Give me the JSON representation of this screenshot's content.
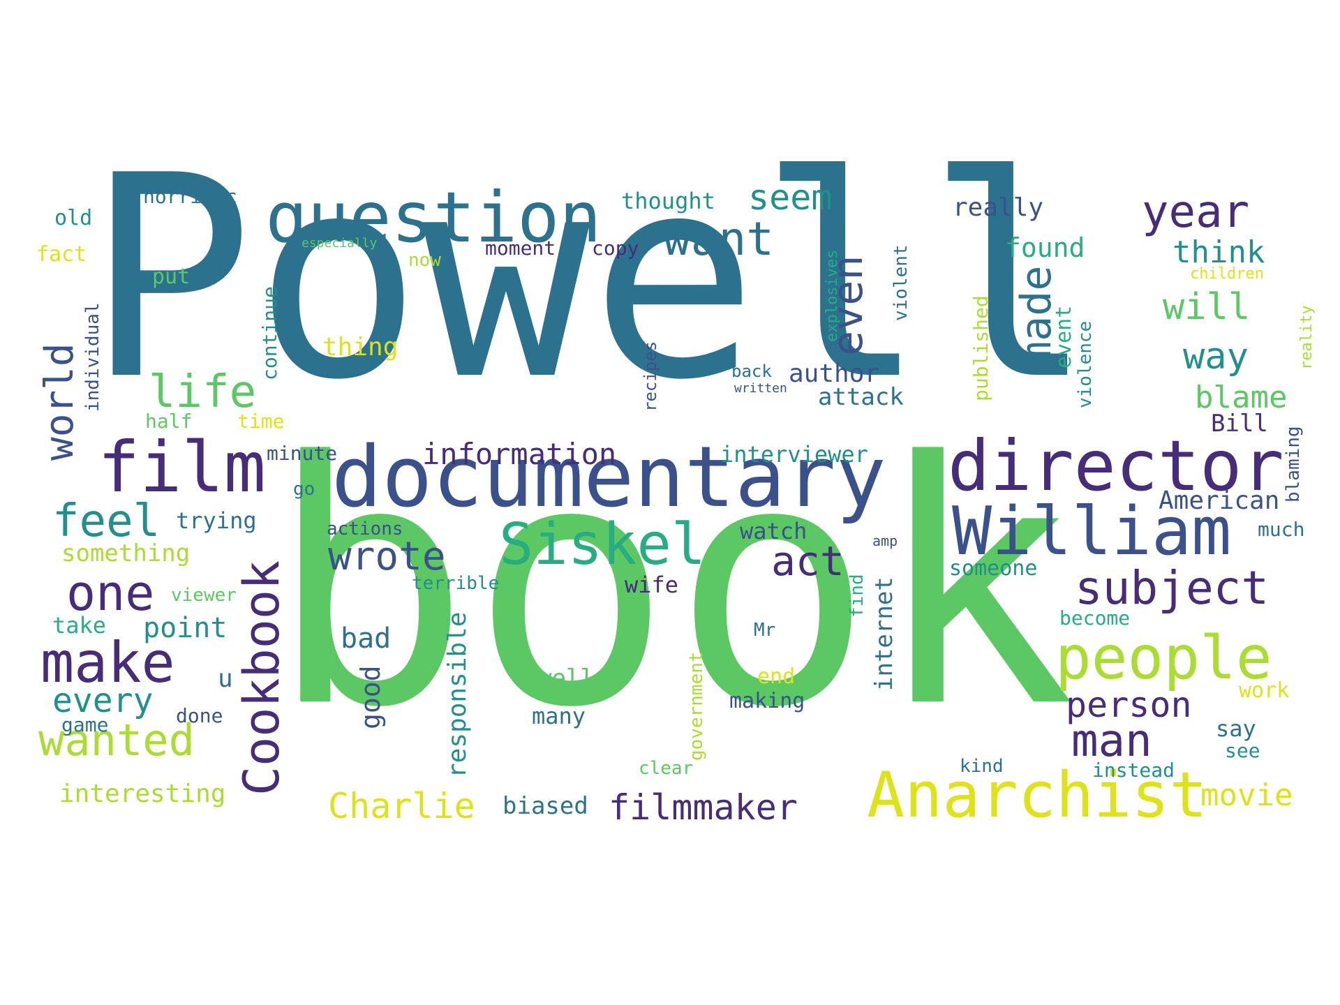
{
  "palette": {
    "dark_purple": "#472c7a",
    "indigo": "#3b518b",
    "blue": "#2c718e",
    "teal": "#21908d",
    "green_teal": "#27ad81",
    "green": "#5cc863",
    "light_green": "#aadc32",
    "yellow": "#dde318"
  },
  "words": [
    {
      "t": "Powell",
      "c": "#2c718e"
    },
    {
      "t": "book",
      "c": "#5cc863"
    },
    {
      "t": "documentary",
      "c": "#3b518b"
    },
    {
      "t": "question",
      "c": "#2c718e"
    },
    {
      "t": "director",
      "c": "#472c7a"
    },
    {
      "t": "William",
      "c": "#3b518b"
    },
    {
      "t": "film",
      "c": "#472c7a"
    },
    {
      "t": "Anarchist",
      "c": "#dde318"
    },
    {
      "t": "Cookbook",
      "c": "#472c7a"
    },
    {
      "t": "people",
      "c": "#aadc32"
    },
    {
      "t": "Siskel",
      "c": "#27ad81"
    },
    {
      "t": "make",
      "c": "#472c7a"
    },
    {
      "t": "world",
      "c": "#3b518b"
    },
    {
      "t": "want",
      "c": "#2c718e"
    },
    {
      "t": "subject",
      "c": "#472c7a"
    },
    {
      "t": "year",
      "c": "#472c7a"
    },
    {
      "t": "made",
      "c": "#2c718e"
    },
    {
      "t": "even",
      "c": "#3b518b"
    },
    {
      "t": "one",
      "c": "#472c7a"
    },
    {
      "t": "man",
      "c": "#472c7a"
    },
    {
      "t": "life",
      "c": "#5cc863"
    },
    {
      "t": "feel",
      "c": "#21908d"
    },
    {
      "t": "wrote",
      "c": "#3b518b"
    },
    {
      "t": "act",
      "c": "#472c7a"
    },
    {
      "t": "wanted",
      "c": "#aadc32"
    },
    {
      "t": "Charlie",
      "c": "#dde318"
    },
    {
      "t": "filmmaker",
      "c": "#472c7a"
    },
    {
      "t": "information",
      "c": "#472c7a"
    },
    {
      "t": "person",
      "c": "#472c7a"
    },
    {
      "t": "every",
      "c": "#21908d"
    },
    {
      "t": "seem",
      "c": "#21908d"
    },
    {
      "t": "will",
      "c": "#5cc863"
    },
    {
      "t": "way",
      "c": "#21908d"
    },
    {
      "t": "think",
      "c": "#21908d"
    },
    {
      "t": "blame",
      "c": "#5cc863"
    },
    {
      "t": "really",
      "c": "#3b518b"
    },
    {
      "t": "found",
      "c": "#27ad81"
    },
    {
      "t": "author",
      "c": "#3b518b"
    },
    {
      "t": "attack",
      "c": "#2c718e"
    },
    {
      "t": "thought",
      "c": "#21908d"
    },
    {
      "t": "point",
      "c": "#21908d"
    },
    {
      "t": "bad",
      "c": "#2c718e"
    },
    {
      "t": "good",
      "c": "#3b518b"
    },
    {
      "t": "responsible",
      "c": "#21908d"
    },
    {
      "t": "movie",
      "c": "#dde318"
    },
    {
      "t": "biased",
      "c": "#2c718e"
    },
    {
      "t": "interesting",
      "c": "#aadc32"
    },
    {
      "t": "something",
      "c": "#aadc32"
    },
    {
      "t": "American",
      "c": "#3b518b"
    },
    {
      "t": "interviewer",
      "c": "#21908d"
    },
    {
      "t": "trying",
      "c": "#2c718e"
    },
    {
      "t": "horrific",
      "c": "#2c718e"
    },
    {
      "t": "old",
      "c": "#21908d"
    },
    {
      "t": "fact",
      "c": "#dde318"
    },
    {
      "t": "individual",
      "c": "#3b518b"
    },
    {
      "t": "half",
      "c": "#5cc863"
    },
    {
      "t": "time",
      "c": "#dde318"
    },
    {
      "t": "moment",
      "c": "#472c7a"
    },
    {
      "t": "copy",
      "c": "#472c7a"
    },
    {
      "t": "continue",
      "c": "#21908d"
    },
    {
      "t": "thing",
      "c": "#dde318"
    },
    {
      "t": "put",
      "c": "#5cc863"
    },
    {
      "t": "now",
      "c": "#aadc32"
    },
    {
      "t": "especially",
      "c": "#5cc863"
    },
    {
      "t": "minute",
      "c": "#3b518b"
    },
    {
      "t": "go",
      "c": "#2c718e"
    },
    {
      "t": "take",
      "c": "#27ad81"
    },
    {
      "t": "viewer",
      "c": "#5cc863"
    },
    {
      "t": "game",
      "c": "#2c718e"
    },
    {
      "t": "done",
      "c": "#3b518b"
    },
    {
      "t": "u",
      "c": "#2c718e"
    },
    {
      "t": "actions",
      "c": "#3b518b"
    },
    {
      "t": "watch",
      "c": "#3b518b"
    },
    {
      "t": "wife",
      "c": "#472c7a"
    },
    {
      "t": "terrible",
      "c": "#21908d"
    },
    {
      "t": "well",
      "c": "#5cc863"
    },
    {
      "t": "many",
      "c": "#2c718e"
    },
    {
      "t": "making",
      "c": "#3b518b"
    },
    {
      "t": "end",
      "c": "#dde318"
    },
    {
      "t": "Mr",
      "c": "#2c718e"
    },
    {
      "t": "government",
      "c": "#aadc32"
    },
    {
      "t": "internet",
      "c": "#2c718e"
    },
    {
      "t": "find",
      "c": "#27ad81"
    },
    {
      "t": "someone",
      "c": "#21908d"
    },
    {
      "t": "become",
      "c": "#27ad81"
    },
    {
      "t": "work",
      "c": "#dde318"
    },
    {
      "t": "say",
      "c": "#2c718e"
    },
    {
      "t": "see",
      "c": "#21908d"
    },
    {
      "t": "kind",
      "c": "#2c718e"
    },
    {
      "t": "instead",
      "c": "#21908d"
    },
    {
      "t": "much",
      "c": "#2c718e"
    },
    {
      "t": "Bill",
      "c": "#472c7a"
    },
    {
      "t": "blaming",
      "c": "#3b518b"
    },
    {
      "t": "published",
      "c": "#aadc32"
    },
    {
      "t": "event",
      "c": "#27ad81"
    },
    {
      "t": "violence",
      "c": "#21908d"
    },
    {
      "t": "violent",
      "c": "#2c718e"
    },
    {
      "t": "explosives",
      "c": "#27ad81"
    },
    {
      "t": "recipes",
      "c": "#3b518b"
    },
    {
      "t": "back",
      "c": "#2c718e"
    },
    {
      "t": "written",
      "c": "#3b518b"
    },
    {
      "t": "clear",
      "c": "#5cc863"
    },
    {
      "t": "children",
      "c": "#dde318"
    },
    {
      "t": "reality",
      "c": "#aadc32"
    },
    {
      "t": "amp",
      "c": "#3b518b"
    }
  ]
}
